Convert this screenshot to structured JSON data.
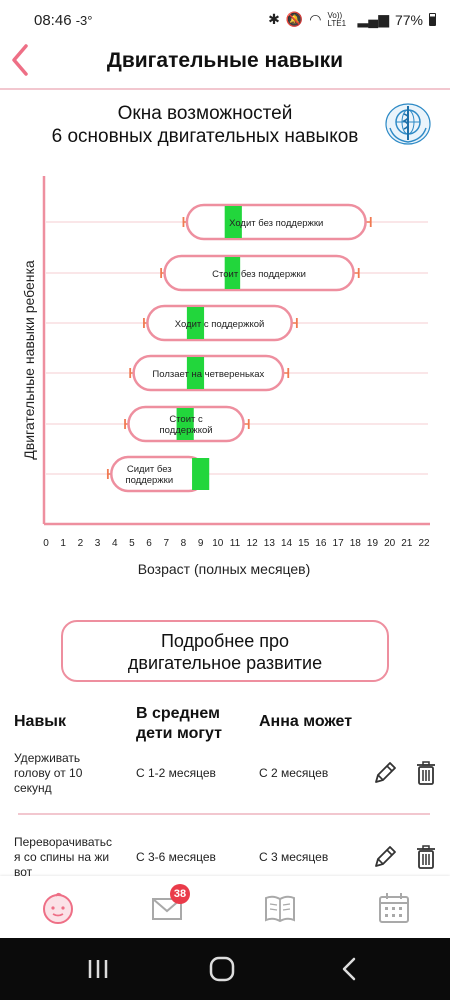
{
  "status_bar": {
    "time": "08:46",
    "temp": "-3°",
    "network": "Vo)) LTE1",
    "battery": "77%"
  },
  "header": {
    "title": "Двигательные навыки"
  },
  "chart_heading": {
    "line1": "Окна возможностей",
    "line2": "6 основных двигательных навыков"
  },
  "chart_data": {
    "type": "bar",
    "xlabel": "Возраст (полных месяцев)",
    "ylabel": "Двигательные навыки ребенка",
    "xlim": [
      0,
      22
    ],
    "xticks": [
      0,
      1,
      2,
      3,
      4,
      5,
      6,
      7,
      8,
      9,
      10,
      11,
      12,
      13,
      14,
      15,
      16,
      17,
      18,
      19,
      20,
      21,
      22
    ],
    "colors": {
      "window": "#ee8f9f",
      "median": "#22d63c",
      "whisker": "#f07a52",
      "axis": "#ee8f9f",
      "grid": "#f6d6db"
    },
    "skills": [
      {
        "label": "Ходит без поддержки",
        "start": 8.2,
        "end": 18.6,
        "median_from": 10.4,
        "median_to": 11.4,
        "ci_low": 8.0,
        "ci_high": 18.9
      },
      {
        "label": "Стоит без поддержки",
        "start": 6.9,
        "end": 17.9,
        "median_from": 10.4,
        "median_to": 11.3,
        "ci_low": 6.7,
        "ci_high": 18.2
      },
      {
        "label": "Ходит с поддержкой",
        "start": 5.9,
        "end": 14.3,
        "median_from": 8.2,
        "median_to": 9.2,
        "ci_low": 5.7,
        "ci_high": 14.6
      },
      {
        "label": "Ползает на четвереньках",
        "start": 5.1,
        "end": 13.8,
        "median_from": 8.2,
        "median_to": 9.2,
        "ci_low": 4.9,
        "ci_high": 14.1
      },
      {
        "label": "Стоит с поддержкой",
        "start": 4.8,
        "end": 11.5,
        "median_from": 7.6,
        "median_to": 8.6,
        "ci_low": 4.6,
        "ci_high": 11.8
      },
      {
        "label": "Сидит без поддержки",
        "start": 3.8,
        "end": 9.3,
        "median_from": 8.5,
        "median_to": 9.5,
        "ci_low": 3.6,
        "ci_high": 9.3
      }
    ]
  },
  "more_button": {
    "line1": "Подробнее про",
    "line2": "двигательное развитие"
  },
  "table": {
    "headers": [
      "Навык",
      "В среднем дети могут",
      "Анна может"
    ],
    "rows": [
      {
        "skill": "Удерживать голову от 10 секунд",
        "average": "С 1-2 месяцев",
        "child": "С 2 месяцев"
      },
      {
        "skill": "Переворачиваться со спины на живот",
        "average": "С 3-6 месяцев",
        "child": "С 3 месяцев"
      }
    ]
  },
  "bottom_nav": {
    "messages_badge": "38"
  }
}
